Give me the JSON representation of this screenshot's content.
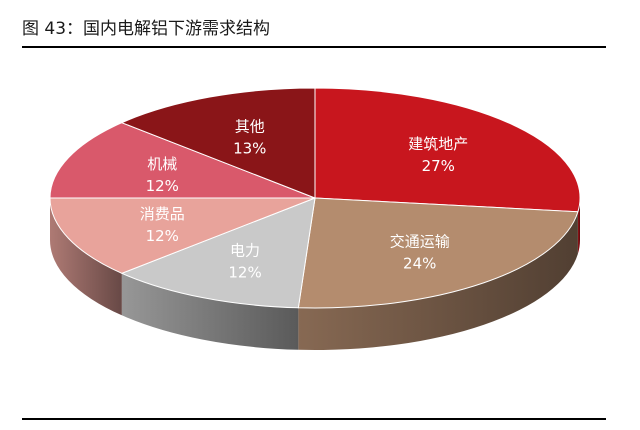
{
  "figure": {
    "title": "图 43：国内电解铝下游需求结构"
  },
  "chart_data": {
    "type": "pie",
    "style": "3d-tilted",
    "categories": [
      "建筑地产",
      "交通运输",
      "电力",
      "消费品",
      "机械",
      "其他"
    ],
    "values": [
      27,
      24,
      12,
      12,
      12,
      13
    ],
    "labels": [
      "27%",
      "24%",
      "12%",
      "12%",
      "12%",
      "13%"
    ],
    "colors": [
      "#C8161E",
      "#B48C6E",
      "#C9C9C9",
      "#E8A39B",
      "#D9596B",
      "#8A1518"
    ],
    "legend": "none",
    "data_labels": "inside"
  }
}
